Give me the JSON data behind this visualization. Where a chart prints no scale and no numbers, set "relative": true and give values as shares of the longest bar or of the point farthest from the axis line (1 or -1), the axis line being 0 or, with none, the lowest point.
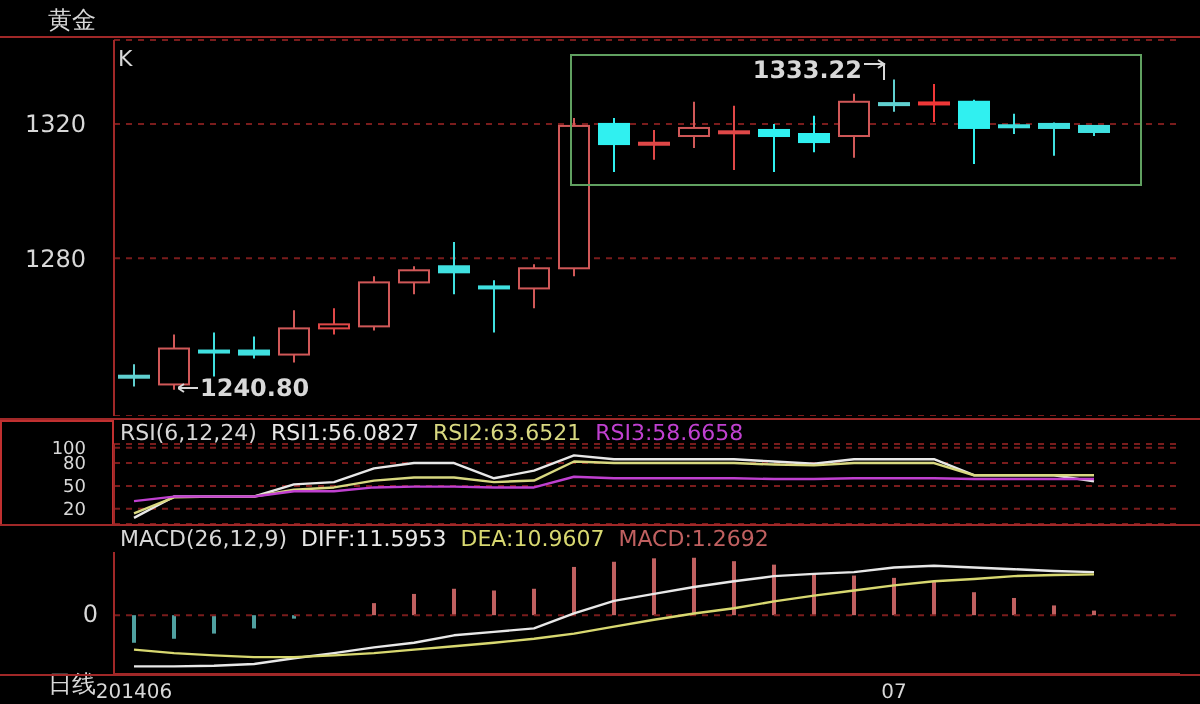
{
  "chart_data": [
    {
      "type": "candlestick",
      "title": "黄金",
      "categories": [
        "201406",
        null,
        null,
        null,
        null,
        null,
        null,
        null,
        null,
        null,
        null,
        null,
        null,
        null,
        null,
        null,
        null,
        null,
        null,
        "07",
        null,
        null,
        null,
        null,
        null
      ],
      "ohlc": [
        [
          1245.0,
          1248.4,
          1241.8,
          1244.6
        ],
        [
          1242.4,
          1257.3,
          1240.8,
          1253.1
        ],
        [
          1252.5,
          1257.9,
          1244.8,
          1251.9
        ],
        [
          1252.5,
          1256.7,
          1250.1,
          1251.3
        ],
        [
          1251.3,
          1264.5,
          1248.9,
          1259.1
        ],
        [
          1259.1,
          1265.1,
          1257.3,
          1260.3
        ],
        [
          1259.7,
          1274.6,
          1258.5,
          1272.8
        ],
        [
          1272.8,
          1277.6,
          1269.3,
          1276.4
        ],
        [
          1277.6,
          1284.8,
          1269.3,
          1275.8
        ],
        [
          1271.6,
          1273.4,
          1257.9,
          1271.0
        ],
        [
          1271.0,
          1278.2,
          1265.1,
          1277.0
        ],
        [
          1277.0,
          1321.8,
          1274.6,
          1319.4
        ],
        [
          1320.0,
          1321.8,
          1305.7,
          1314.0
        ],
        [
          1313.8,
          1318.2,
          1309.3,
          1314.4
        ],
        [
          1316.4,
          1326.6,
          1312.8,
          1318.8
        ],
        [
          1317.4,
          1325.4,
          1306.3,
          1317.8
        ],
        [
          1318.2,
          1320.0,
          1305.7,
          1316.4
        ],
        [
          1317.0,
          1322.4,
          1311.6,
          1314.6
        ],
        [
          1316.4,
          1329.0,
          1309.9,
          1326.6
        ],
        [
          1326.2,
          1333.22,
          1323.6,
          1325.8
        ],
        [
          1325.8,
          1331.9,
          1320.6,
          1326.4
        ],
        [
          1326.6,
          1327.2,
          1308.1,
          1318.8
        ],
        [
          1319.6,
          1323.0,
          1317.0,
          1319.0
        ],
        [
          1320.0,
          1320.4,
          1310.5,
          1318.8
        ],
        [
          1319.4,
          1319.6,
          1316.4,
          1317.6
        ]
      ],
      "colors": [
        "#60d0d0",
        "#d05858",
        "#40e0e0",
        "#40e0e0",
        "#d05858",
        "#e04848",
        "#d05858",
        "#d05858",
        "#40e0e0",
        "#40e0e0",
        "#d05858",
        "#d05858",
        "#30f0f0",
        "#e04848",
        "#d05858",
        "#e04848",
        "#30f0f0",
        "#30f0f0",
        "#d05858",
        "#60d0d0",
        "#f03838",
        "#30f0f0",
        "#40e0e0",
        "#40e0e0",
        "#40e0e0"
      ],
      "ylim": [
        1233,
        1345
      ],
      "yticks": [
        1280,
        1320
      ],
      "grid": "y",
      "tick_labels": "y",
      "annotations": [
        "K",
        "1240.80",
        "1333.22"
      ]
    },
    {
      "type": "line",
      "title": "RSI(6,12,24)",
      "categories": [
        "201406",
        null,
        null,
        null,
        null,
        null,
        null,
        null,
        null,
        null,
        null,
        null,
        null,
        null,
        null,
        null,
        null,
        null,
        null,
        "07",
        null,
        null,
        null,
        null,
        null
      ],
      "series": [
        {
          "name": "RSI1:56.0827",
          "color": "#e8e8e8",
          "values": [
            8,
            36,
            36,
            36,
            52,
            55,
            73,
            80,
            80,
            60,
            70,
            90,
            85,
            85,
            85,
            85,
            82,
            79,
            85,
            85,
            85,
            64,
            64,
            64,
            56
          ]
        },
        {
          "name": "RSI2:63.6521",
          "color": "#d8d880",
          "values": [
            14,
            35,
            36,
            36,
            45,
            48,
            57,
            61,
            61,
            55,
            57,
            82,
            80,
            80,
            80,
            80,
            78,
            77,
            80,
            80,
            80,
            64,
            64,
            64,
            64
          ]
        },
        {
          "name": "RSI3:58.6658",
          "color": "#c040d0",
          "values": [
            30,
            36,
            36,
            36,
            43,
            43,
            48,
            49,
            49,
            48,
            48,
            62,
            60,
            60,
            60,
            60,
            59,
            59,
            60,
            60,
            60,
            59,
            59,
            59,
            59
          ]
        }
      ],
      "ylim": [
        0,
        105
      ],
      "yticks": [
        20,
        50,
        80,
        100
      ],
      "grid": "y",
      "tick_labels": "y",
      "legend": "top left"
    },
    {
      "type": "line",
      "title": "MACD(26,12,9)",
      "xlabel": "日线",
      "categories": [
        "201406",
        null,
        null,
        null,
        null,
        null,
        null,
        null,
        null,
        null,
        null,
        null,
        null,
        null,
        null,
        null,
        null,
        null,
        null,
        "07",
        null,
        null,
        null,
        null,
        null
      ],
      "series": [
        {
          "name": "DIFF:11.5953",
          "color": "#e8e8e8",
          "values": [
            -0.89,
            -0.89,
            -0.88,
            -0.85,
            -0.75,
            -0.66,
            -0.56,
            -0.48,
            -0.35,
            -0.29,
            -0.23,
            0.03,
            0.25,
            0.37,
            0.49,
            0.59,
            0.68,
            0.72,
            0.75,
            0.83,
            0.86,
            0.83,
            0.8,
            0.77,
            0.75
          ]
        },
        {
          "name": "DEA:10.9607",
          "color": "#d8d870",
          "values": [
            -0.6,
            -0.66,
            -0.7,
            -0.73,
            -0.73,
            -0.7,
            -0.66,
            -0.6,
            -0.54,
            -0.48,
            -0.41,
            -0.32,
            -0.2,
            -0.08,
            0.03,
            0.12,
            0.24,
            0.34,
            0.43,
            0.52,
            0.59,
            0.63,
            0.68,
            0.7,
            0.71
          ]
        },
        {
          "name": "MACD:1.2692",
          "type": "bar",
          "color": "#c06060",
          "colors": [
            "#50a0a0",
            "#50a0a0",
            "#50a0a0",
            "#50a0a0",
            "#50a0a0",
            "#c06060",
            "#c06060",
            "#c06060",
            "#c06060",
            "#c06060",
            "#c06060",
            "#c06060",
            "#c06060",
            "#c06060",
            "#c06060",
            "#c06060",
            "#c06060",
            "#c06060",
            "#c06060",
            "#c06060",
            "#c06060",
            "#c06060",
            "#c06060",
            "#c06060",
            "#c06060"
          ],
          "values": [
            -0.48,
            -0.41,
            -0.32,
            -0.23,
            -0.06,
            0,
            0.21,
            0.37,
            0.46,
            0.43,
            0.46,
            0.84,
            0.93,
            0.99,
            1,
            0.94,
            0.88,
            0.72,
            0.69,
            0.65,
            0.59,
            0.4,
            0.3,
            0.17,
            0.08
          ]
        }
      ],
      "relative": true,
      "ref_lines": [
        {
          "axis": "y",
          "value": 0,
          "label": "0",
          "color": "#7a1c1c",
          "line_style": "dashed"
        }
      ],
      "legend": "top left"
    }
  ]
}
